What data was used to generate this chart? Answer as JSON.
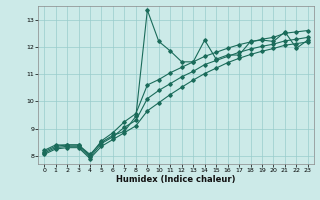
{
  "xlabel": "Humidex (Indice chaleur)",
  "bg_color": "#cceae8",
  "line_color": "#1a6b5a",
  "grid_color": "#99cccc",
  "xlim": [
    -0.5,
    23.5
  ],
  "ylim": [
    7.7,
    13.5
  ],
  "yticks": [
    8,
    9,
    10,
    11,
    12,
    13
  ],
  "xticks": [
    0,
    1,
    2,
    3,
    4,
    5,
    6,
    7,
    8,
    9,
    10,
    11,
    12,
    13,
    14,
    15,
    16,
    17,
    18,
    19,
    20,
    21,
    22,
    23
  ],
  "line1_x": [
    0,
    1,
    2,
    3,
    4,
    5,
    6,
    7,
    8,
    9,
    10,
    11,
    12,
    13,
    14,
    15,
    16,
    17,
    18,
    19,
    20,
    21,
    22,
    23
  ],
  "line1_y": [
    8.2,
    8.4,
    8.4,
    8.4,
    8.05,
    8.5,
    8.75,
    8.9,
    9.45,
    13.35,
    12.2,
    11.85,
    11.45,
    11.45,
    12.25,
    11.55,
    11.7,
    11.7,
    12.2,
    12.25,
    12.2,
    12.55,
    11.95,
    12.25
  ],
  "line2_x": [
    0,
    1,
    2,
    3,
    4,
    5,
    6,
    7,
    8,
    9,
    10,
    11,
    12,
    13,
    14,
    15,
    16,
    17,
    18,
    19,
    20,
    21,
    22,
    23
  ],
  "line2_y": [
    8.15,
    8.35,
    8.4,
    8.4,
    8.0,
    8.55,
    8.85,
    9.25,
    9.55,
    10.6,
    10.8,
    11.05,
    11.25,
    11.45,
    11.65,
    11.8,
    11.95,
    12.08,
    12.18,
    12.28,
    12.35,
    12.5,
    12.55,
    12.6
  ],
  "line3_x": [
    0,
    1,
    2,
    3,
    4,
    5,
    6,
    7,
    8,
    9,
    10,
    11,
    12,
    13,
    14,
    15,
    16,
    17,
    18,
    19,
    20,
    21,
    22,
    23
  ],
  "line3_y": [
    8.1,
    8.3,
    8.35,
    8.35,
    7.95,
    8.45,
    8.7,
    9.05,
    9.3,
    10.1,
    10.4,
    10.65,
    10.9,
    11.1,
    11.35,
    11.5,
    11.65,
    11.8,
    11.92,
    12.02,
    12.1,
    12.22,
    12.28,
    12.35
  ],
  "line4_x": [
    0,
    1,
    2,
    3,
    4,
    5,
    6,
    7,
    8,
    9,
    10,
    11,
    12,
    13,
    14,
    15,
    16,
    17,
    18,
    19,
    20,
    21,
    22,
    23
  ],
  "line4_y": [
    8.05,
    8.25,
    8.3,
    8.3,
    7.9,
    8.35,
    8.6,
    8.85,
    9.1,
    9.65,
    9.95,
    10.25,
    10.52,
    10.78,
    11.02,
    11.22,
    11.42,
    11.58,
    11.72,
    11.84,
    11.94,
    12.06,
    12.12,
    12.18
  ]
}
